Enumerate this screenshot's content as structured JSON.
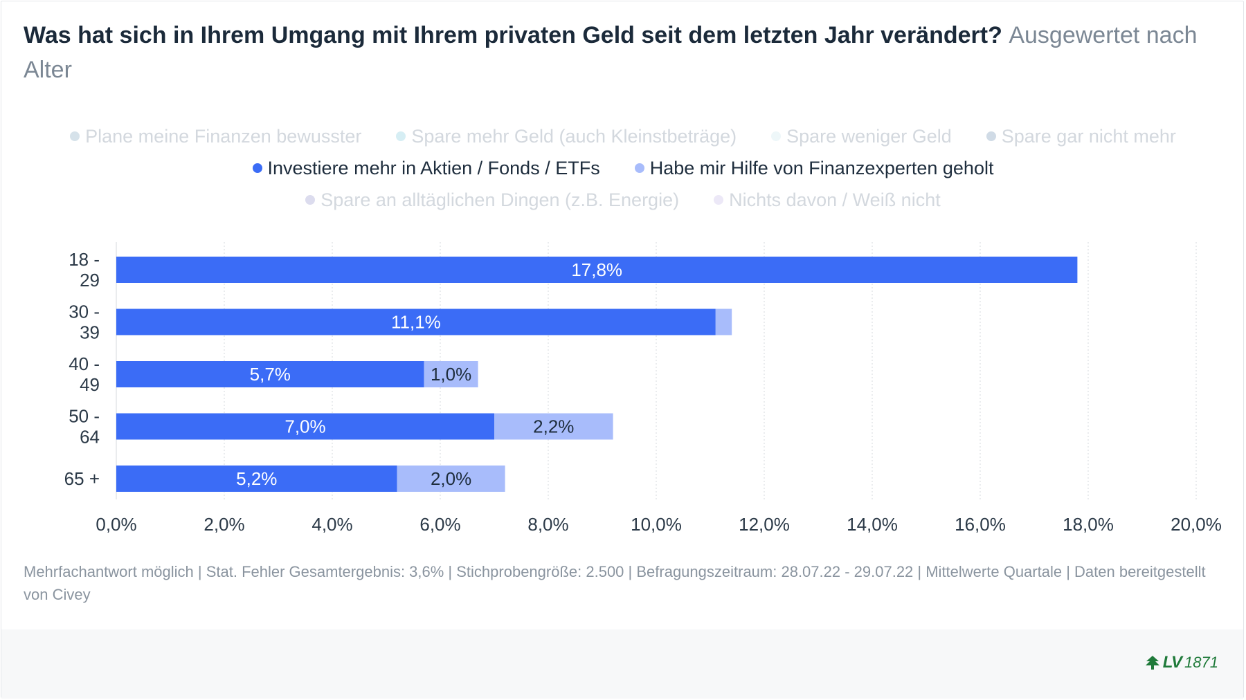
{
  "title": {
    "main": "Was hat sich in Ihrem Umgang mit Ihrem privaten Geld seit dem letzten Jahr verändert?",
    "sub": "Ausgewertet nach Alter"
  },
  "legend": {
    "rows": [
      [
        {
          "label": "Plane meine Finanzen bewusster",
          "color": "#d6e2ea",
          "active": false
        },
        {
          "label": "Spare mehr Geld (auch Kleinstbeträge)",
          "color": "#d6eef4",
          "active": false
        },
        {
          "label": "Spare weniger Geld",
          "color": "#eef7f9",
          "active": false
        },
        {
          "label": "Spare gar nicht mehr",
          "color": "#d0dbe6",
          "active": false
        }
      ],
      [
        {
          "label": "Investiere mehr in Aktien / Fonds / ETFs",
          "color": "#3b6cf6",
          "active": true
        },
        {
          "label": "Habe mir Hilfe von Finanzexperten geholt",
          "color": "#a8bcfb",
          "active": true
        }
      ],
      [
        {
          "label": "Spare an alltäglichen Dingen (z.B. Energie)",
          "color": "#dcdcee",
          "active": false
        },
        {
          "label": "Nichts davon / Weiß nicht",
          "color": "#ece8f7",
          "active": false
        }
      ]
    ]
  },
  "chart_data": {
    "type": "bar",
    "orientation": "horizontal",
    "stacked": true,
    "categories": [
      [
        "18 -",
        "29"
      ],
      [
        "30 -",
        "39"
      ],
      [
        "40 -",
        "49"
      ],
      [
        "50 -",
        "64"
      ],
      [
        "65 +"
      ]
    ],
    "series": [
      {
        "name": "Investiere mehr in Aktien / Fonds / ETFs",
        "color": "#3b6cf6",
        "label_color": "#ffffff",
        "values": [
          17.8,
          11.1,
          5.7,
          7.0,
          5.2
        ],
        "labels": [
          "17,8%",
          "11,1%",
          "5,7%",
          "7,0%",
          "5,2%"
        ]
      },
      {
        "name": "Habe mir Hilfe von Finanzexperten geholt",
        "color": "#a8bcfb",
        "label_color": "#1e2d3d",
        "values": [
          0.0,
          0.3,
          1.0,
          2.2,
          2.0
        ],
        "labels": [
          "",
          "",
          "1,0%",
          "2,2%",
          "2,0%"
        ]
      }
    ],
    "xlim": [
      0,
      20
    ],
    "xticks": [
      0,
      2,
      4,
      6,
      8,
      10,
      12,
      14,
      16,
      18,
      20
    ],
    "xtick_labels": [
      "0,0%",
      "2,0%",
      "4,0%",
      "6,0%",
      "8,0%",
      "10,0%",
      "12,0%",
      "14,0%",
      "16,0%",
      "18,0%",
      "20,0%"
    ],
    "grid": true
  },
  "footer": {
    "note": "Mehrfachantwort möglich | Stat. Fehler Gesamtergebnis: 3,6% | Stichprobengröße: 2.500 | Befragungszeitraum: 28.07.22 - 29.07.22 | Mittelwerte Quartale | Daten bereitgestellt von Civey",
    "logo_text": "LV",
    "logo_year": "1871"
  }
}
